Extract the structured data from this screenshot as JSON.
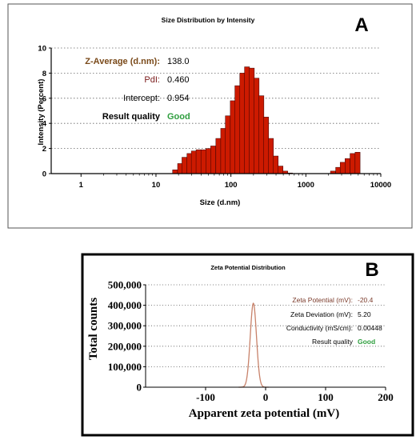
{
  "chart_data": [
    {
      "type": "bar",
      "panel": "A",
      "title": "Size Distribution by Intensity",
      "xlabel": "Size (d.nm)",
      "ylabel": "Intensity (Percent)",
      "x_scale": "log",
      "xlim": [
        0.4,
        10000
      ],
      "ylim": [
        0,
        10
      ],
      "x_ticks": [
        "1",
        "10",
        "100",
        "1000",
        "10000"
      ],
      "y_ticks": [
        "0",
        "2",
        "4",
        "6",
        "8",
        "10"
      ],
      "grid": "horizontal dotted",
      "bar_color": "#cc1a00",
      "bars": [
        {
          "x": 18,
          "y": 0.3
        },
        {
          "x": 21,
          "y": 0.8
        },
        {
          "x": 24,
          "y": 1.3
        },
        {
          "x": 28,
          "y": 1.6
        },
        {
          "x": 32,
          "y": 1.8
        },
        {
          "x": 37,
          "y": 1.9
        },
        {
          "x": 43,
          "y": 1.9
        },
        {
          "x": 50,
          "y": 2.0
        },
        {
          "x": 58,
          "y": 2.2
        },
        {
          "x": 68,
          "y": 2.8
        },
        {
          "x": 79,
          "y": 3.6
        },
        {
          "x": 91,
          "y": 4.6
        },
        {
          "x": 106,
          "y": 5.8
        },
        {
          "x": 122,
          "y": 7.0
        },
        {
          "x": 142,
          "y": 8.0
        },
        {
          "x": 164,
          "y": 8.5
        },
        {
          "x": 190,
          "y": 8.4
        },
        {
          "x": 220,
          "y": 7.6
        },
        {
          "x": 255,
          "y": 6.2
        },
        {
          "x": 295,
          "y": 4.5
        },
        {
          "x": 342,
          "y": 2.8
        },
        {
          "x": 396,
          "y": 1.4
        },
        {
          "x": 459,
          "y": 0.6
        },
        {
          "x": 531,
          "y": 0.2
        },
        {
          "x": 615,
          "y": 0.05
        },
        {
          "x": 2300,
          "y": 0.2
        },
        {
          "x": 2700,
          "y": 0.5
        },
        {
          "x": 3100,
          "y": 0.9
        },
        {
          "x": 3600,
          "y": 1.2
        },
        {
          "x": 4200,
          "y": 1.6
        },
        {
          "x": 4900,
          "y": 1.7
        }
      ],
      "annotations": [
        {
          "label": "Z-Average (d.nm):",
          "value": "138.0",
          "label_color": "#7a4a1a",
          "value_color": "#000000"
        },
        {
          "label": "PdI:",
          "value": "0.460",
          "label_color": "#7a1a1a",
          "value_color": "#000000"
        },
        {
          "label": "Intercept:",
          "value": "0.954",
          "label_color": "#000000",
          "value_color": "#000000"
        },
        {
          "label": "Result quality",
          "value": "Good",
          "label_color": "#000000",
          "value_color": "#2e9e3e"
        }
      ]
    },
    {
      "type": "line",
      "panel": "B",
      "title": "Zeta Potential Distribution",
      "xlabel": "Apparent zeta potential (mV)",
      "ylabel": "Total counts",
      "xlim": [
        -200,
        200
      ],
      "ylim": [
        0,
        500000
      ],
      "x_ticks": [
        "-100",
        "0",
        "100",
        "200"
      ],
      "y_ticks": [
        "0",
        "100,000",
        "200,000",
        "300,000",
        "400,000",
        "500,000"
      ],
      "grid": "horizontal dotted",
      "line_color": "#c8826a",
      "peak_center": -20.4,
      "peak_width": 5.2,
      "peak_height": 410000,
      "annotations": [
        {
          "label": "Zeta Potential (mV):",
          "value": "-20.4",
          "label_color": "#7a3a2a",
          "value_color": "#7a3a2a"
        },
        {
          "label": "Zeta Deviation (mV):",
          "value": "5.20",
          "label_color": "#000000",
          "value_color": "#000000"
        },
        {
          "label": "Conductivity (mS/cm):",
          "value": "0.00448",
          "label_color": "#000000",
          "value_color": "#000000"
        },
        {
          "label": "Result quality",
          "value": "Good",
          "label_color": "#000000",
          "value_color": "#2e9e3e"
        }
      ]
    }
  ]
}
